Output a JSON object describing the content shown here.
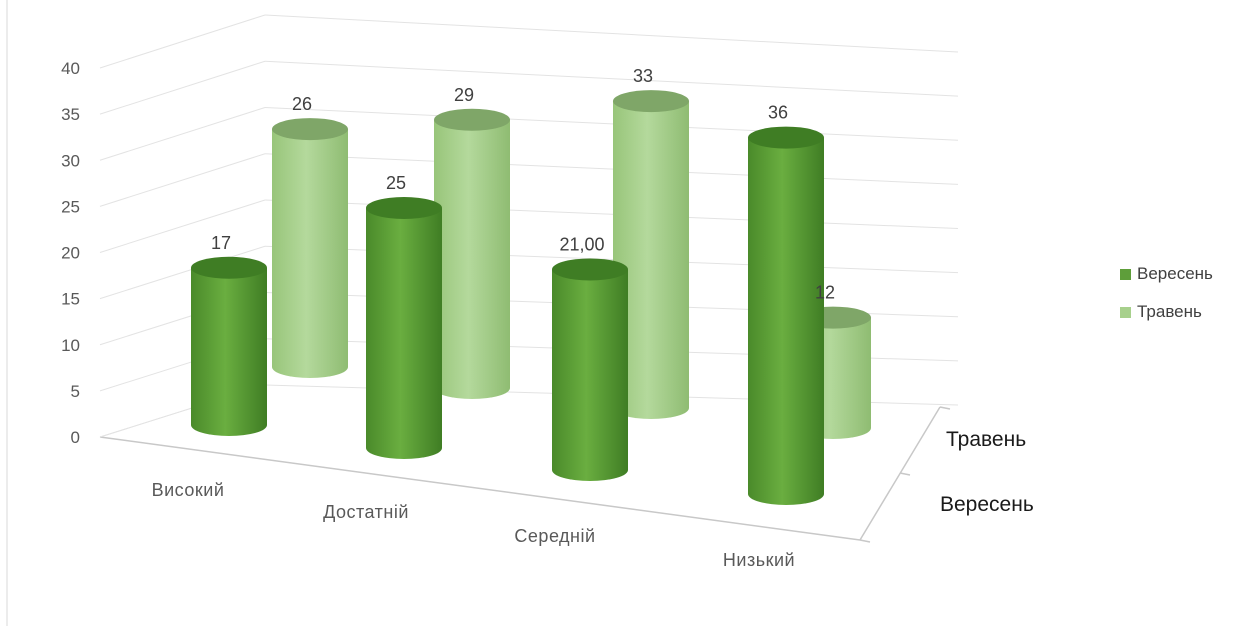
{
  "chart_data": {
    "type": "bar",
    "subtype": "3d-cylinder",
    "categories": [
      "Високий",
      "Достатній",
      "Середній",
      "Низький"
    ],
    "series": [
      {
        "name": "Вересень",
        "values": [
          17,
          25,
          21,
          36
        ],
        "labels": [
          "17",
          "25",
          "21,00",
          "36"
        ],
        "color": "#5e9e3a"
      },
      {
        "name": "Травень",
        "values": [
          26,
          29,
          33,
          12
        ],
        "labels": [
          "26",
          "29",
          "33",
          "12"
        ],
        "color": "#a7d08c"
      }
    ],
    "depth_axis_labels": [
      "Травень",
      "Вересень"
    ],
    "y_ticks": [
      "0",
      "5",
      "10",
      "15",
      "20",
      "25",
      "30",
      "35",
      "40"
    ],
    "ylim": [
      0,
      40
    ],
    "grid": true,
    "legend_position": "right"
  }
}
